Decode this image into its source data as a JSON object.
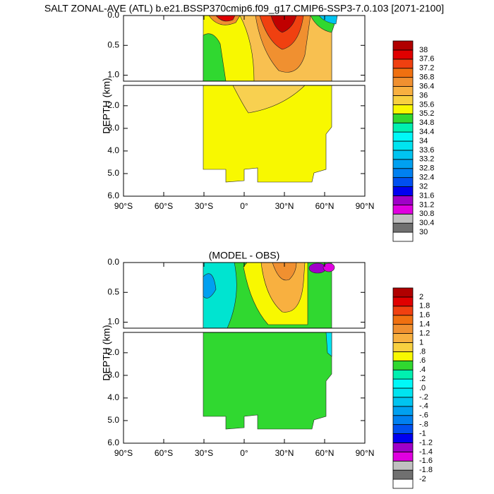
{
  "chart_data": [
    {
      "type": "contour",
      "title": "SALT ZONAL-AVE (ATL) b.e21.BSSP370cmip6.f09_g17.CMIP6-SSP3-7.0.103 [2071-2100]",
      "y_label": "DEPTH (km)",
      "xlim": [
        -90,
        90
      ],
      "xticks": [
        {
          "value": -90,
          "label": "90°S"
        },
        {
          "value": -60,
          "label": "60°S"
        },
        {
          "value": -30,
          "label": "30°S"
        },
        {
          "value": 0,
          "label": "0°"
        },
        {
          "value": 30,
          "label": "30°N"
        },
        {
          "value": 60,
          "label": "60°N"
        },
        {
          "value": 90,
          "label": "90°N"
        }
      ],
      "ylim": [
        [
          0,
          1.1
        ],
        [
          1.1,
          6.0
        ]
      ],
      "yticks": [
        [
          {
            "value": 0,
            "label": "0.0"
          },
          {
            "value": 0.5,
            "label": "0.5"
          },
          {
            "value": 1.0,
            "label": "1.0"
          }
        ],
        [
          {
            "value": 2.0,
            "label": "2.0"
          },
          {
            "value": 3.0,
            "label": "3.0"
          },
          {
            "value": 4.0,
            "label": "4.0"
          },
          {
            "value": 5.0,
            "label": "5.0"
          },
          {
            "value": 6.0,
            "label": "6.0"
          }
        ]
      ],
      "levels": [
        30,
        30.4,
        30.8,
        31.2,
        31.6,
        32,
        32.4,
        32.8,
        33.2,
        33.6,
        34,
        34.4,
        34.8,
        35.2,
        35.6,
        36,
        36.4,
        36.8,
        37.2,
        37.6,
        38
      ],
      "colors": [
        "#ffffff",
        "#707070",
        "#c0c0c0",
        "#e000e0",
        "#a000c8",
        "#0000f0",
        "#0050f0",
        "#0080f0",
        "#00a0f0",
        "#00c4f0",
        "#00e4f0",
        "#00f8f8",
        "#00f0b0",
        "#30d830",
        "#f8f800",
        "#f8d040",
        "#f8b040",
        "#f09030",
        "#f07010",
        "#f04010",
        "#e00000",
        "#b00000"
      ]
    },
    {
      "type": "contour",
      "title": "(MODEL - OBS)",
      "y_label": "DEPTH (km)",
      "xlim": [
        -90,
        90
      ],
      "xticks": [
        {
          "value": -90,
          "label": "90°S"
        },
        {
          "value": -60,
          "label": "60°S"
        },
        {
          "value": -30,
          "label": "30°S"
        },
        {
          "value": 0,
          "label": "0°"
        },
        {
          "value": 30,
          "label": "30°N"
        },
        {
          "value": 60,
          "label": "60°N"
        },
        {
          "value": 90,
          "label": "90°N"
        }
      ],
      "ylim": [
        [
          0,
          1.1
        ],
        [
          1.1,
          6.0
        ]
      ],
      "yticks": [
        [
          {
            "value": 0,
            "label": "0.0"
          },
          {
            "value": 0.5,
            "label": "0.5"
          },
          {
            "value": 1.0,
            "label": "1.0"
          }
        ],
        [
          {
            "value": 2.0,
            "label": "2.0"
          },
          {
            "value": 3.0,
            "label": "3.0"
          },
          {
            "value": 4.0,
            "label": "4.0"
          },
          {
            "value": 5.0,
            "label": "5.0"
          },
          {
            "value": 6.0,
            "label": "6.0"
          }
        ]
      ],
      "levels": [
        -2,
        -1.8,
        -1.6,
        -1.4,
        -1.2,
        -1,
        {
          "value": -0.8,
          "label": "-.8"
        },
        {
          "value": -0.6,
          "label": "-.6"
        },
        {
          "value": -0.4,
          "label": "-.4"
        },
        {
          "value": -0.2,
          "label": "-.2"
        },
        {
          "value": 0,
          "label": ".0"
        },
        {
          "value": 0.2,
          "label": ".2"
        },
        {
          "value": 0.4,
          "label": ".4"
        },
        {
          "value": 0.6,
          "label": ".6"
        },
        {
          "value": 0.8,
          "label": ".8"
        },
        1,
        1.2,
        1.4,
        1.6,
        1.8,
        2
      ],
      "colors": [
        "#ffffff",
        "#707070",
        "#c0c0c0",
        "#e000e0",
        "#a000c8",
        "#0000f0",
        "#0050f0",
        "#0080f0",
        "#00a0f0",
        "#00c4f0",
        "#00e4f0",
        "#00f8f8",
        "#00f0b0",
        "#30d830",
        "#f8f800",
        "#f8d040",
        "#f8b040",
        "#f09030",
        "#f07010",
        "#f04010",
        "#e00000",
        "#b00000"
      ]
    }
  ]
}
